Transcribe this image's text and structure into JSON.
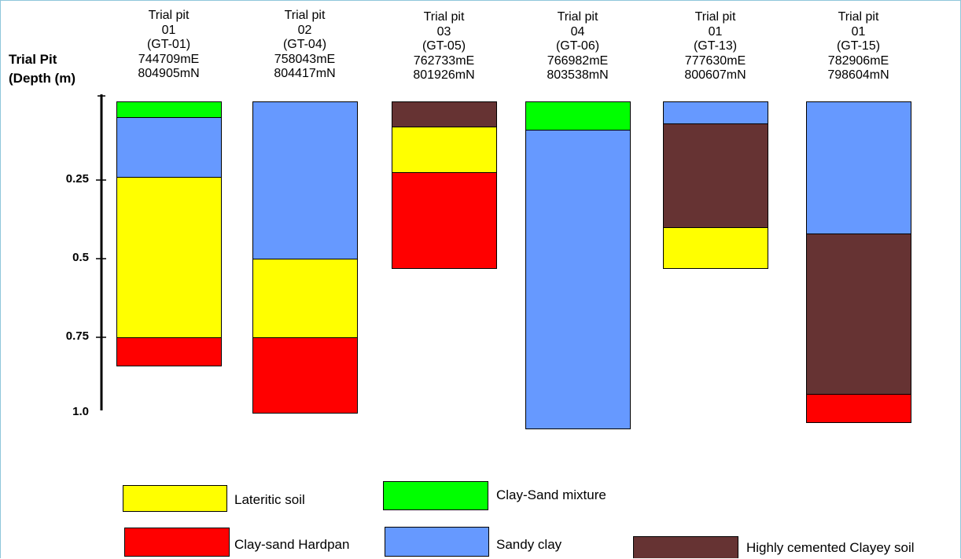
{
  "chart_data": {
    "type": "bar",
    "subtype": "stacked-soil-profile",
    "yaxis": {
      "title_line1": "Trial Pit",
      "title_line2": "(Depth (m)",
      "ticks": [
        {
          "value": 0.25,
          "label": "0.25"
        },
        {
          "value": 0.5,
          "label": "0.5"
        },
        {
          "value": 0.75,
          "label": "0.75"
        },
        {
          "value": 1.0,
          "label": "1.0"
        }
      ],
      "range": [
        0,
        1.0
      ],
      "inverted": true
    },
    "pits": [
      {
        "header": [
          "Trial pit",
          "01",
          "(GT-01)",
          "744709mE",
          "804905mN"
        ],
        "layers": [
          {
            "material": "clay_sand_mixture",
            "top": 0.0,
            "bottom": 0.05
          },
          {
            "material": "sandy_clay",
            "top": 0.05,
            "bottom": 0.24
          },
          {
            "material": "lateritic_soil",
            "top": 0.24,
            "bottom": 0.75
          },
          {
            "material": "clay_sand_hardpan",
            "top": 0.75,
            "bottom": 0.84
          }
        ]
      },
      {
        "header": [
          "Trial pit",
          "02",
          "(GT-04)",
          "758043mE",
          "804417mN"
        ],
        "layers": [
          {
            "material": "sandy_clay",
            "top": 0.0,
            "bottom": 0.5
          },
          {
            "material": "lateritic_soil",
            "top": 0.5,
            "bottom": 0.75
          },
          {
            "material": "clay_sand_hardpan",
            "top": 0.75,
            "bottom": 0.99
          }
        ]
      },
      {
        "header": [
          "Trial pit",
          "03",
          "(GT-05)",
          "762733mE",
          "801926mN"
        ],
        "layers": [
          {
            "material": "highly_cemented_clayey_soil",
            "top": 0.0,
            "bottom": 0.08
          },
          {
            "material": "lateritic_soil",
            "top": 0.08,
            "bottom": 0.225
          },
          {
            "material": "clay_sand_hardpan",
            "top": 0.225,
            "bottom": 0.53
          }
        ]
      },
      {
        "header": [
          "Trial pit",
          "04",
          "(GT-06)",
          "766982mE",
          "803538mN"
        ],
        "layers": [
          {
            "material": "clay_sand_mixture",
            "top": 0.0,
            "bottom": 0.09
          },
          {
            "material": "sandy_clay",
            "top": 0.09,
            "bottom": 1.04
          }
        ]
      },
      {
        "header": [
          "Trial pit",
          "01",
          "(GT-13)",
          "777630mE",
          "800607mN"
        ],
        "layers": [
          {
            "material": "sandy_clay",
            "top": 0.0,
            "bottom": 0.07
          },
          {
            "material": "highly_cemented_clayey_soil",
            "top": 0.07,
            "bottom": 0.4
          },
          {
            "material": "lateritic_soil",
            "top": 0.4,
            "bottom": 0.53
          }
        ]
      },
      {
        "header": [
          "Trial pit",
          "01",
          "(GT-15)",
          "782906mE",
          "798604mN"
        ],
        "layers": [
          {
            "material": "sandy_clay",
            "top": 0.0,
            "bottom": 0.42
          },
          {
            "material": "highly_cemented_clayey_soil",
            "top": 0.42,
            "bottom": 0.93
          },
          {
            "material": "clay_sand_hardpan",
            "top": 0.93,
            "bottom": 1.02
          }
        ]
      }
    ],
    "materials": {
      "lateritic_soil": {
        "label": "Lateritic soil",
        "color": "#ffff00"
      },
      "clay_sand_mixture": {
        "label": "Clay-Sand mixture",
        "color": "#00ff00"
      },
      "clay_sand_hardpan": {
        "label": "Clay-sand Hardpan",
        "color": "#ff0000"
      },
      "sandy_clay": {
        "label": "Sandy clay",
        "color": "#6699ff"
      },
      "highly_cemented_clayey_soil": {
        "label": "Highly cemented Clayey soil",
        "color": "#663333"
      }
    }
  }
}
